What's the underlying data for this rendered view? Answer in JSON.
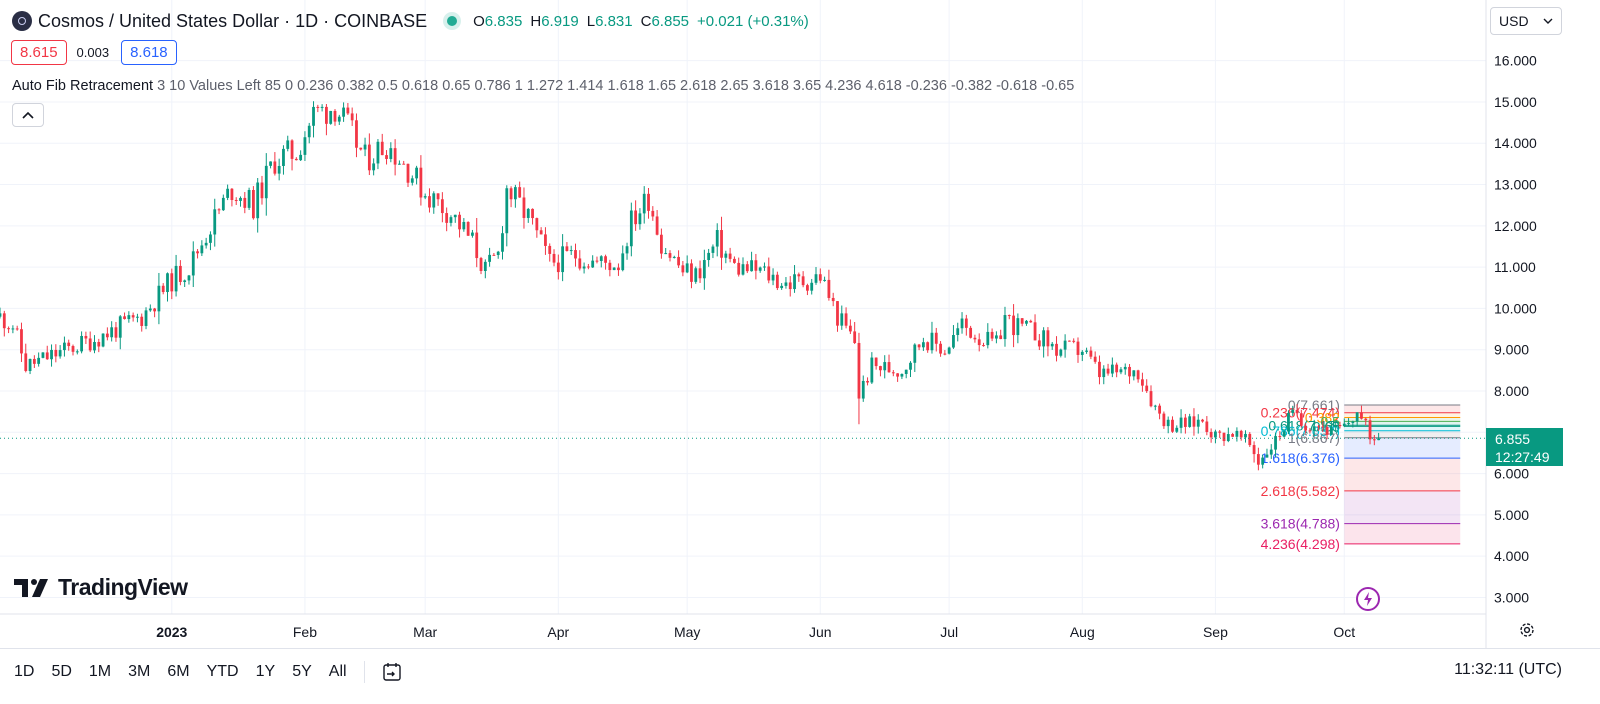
{
  "header": {
    "symbol_title": "Cosmos / United States Dollar · 1D · COINBASE",
    "ohlc": {
      "o_label": "O",
      "o": "6.835",
      "h_label": "H",
      "h": "6.919",
      "l_label": "L",
      "l": "6.831",
      "c_label": "C",
      "c": "6.855",
      "change": "+0.021 (+0.31%)"
    },
    "sell_price": "8.615",
    "spread": "0.003",
    "buy_price": "8.618",
    "currency": "USD",
    "indicator_name": "Auto Fib Retracement",
    "indicator_params": "3 10 Values Left 85 0 0.236 0.382 0.5 0.618 0.65 0.786 1 1.272 1.414 1.618 1.65 2.618 2.65 3.618 3.65 4.236 4.618 -0.236 -0.382 -0.618 -0.65",
    "collapse_icon": "chevron-up-icon"
  },
  "brand": {
    "name": "TradingView"
  },
  "last_price": {
    "value": "6.855",
    "countdown": "12:27:49",
    "color": "#089981"
  },
  "bottom_bar": {
    "ranges": [
      "1D",
      "5D",
      "1M",
      "3M",
      "6M",
      "YTD",
      "1Y",
      "5Y",
      "All"
    ],
    "clock": "11:32:11 (UTC)"
  },
  "colors": {
    "up": "#089981",
    "down": "#f23645"
  },
  "chart_data": {
    "type": "candlestick",
    "y_ticks": [
      "16.000",
      "15.000",
      "14.000",
      "13.000",
      "12.000",
      "11.000",
      "10.000",
      "9.000",
      "8.000",
      "7.000",
      "6.000",
      "5.000",
      "4.000",
      "3.000"
    ],
    "ylim": [
      2.6,
      16.5
    ],
    "x_ticks": [
      {
        "label": "2023",
        "date": "2023-01-01",
        "bold": true
      },
      {
        "label": "Feb",
        "date": "2023-02-01"
      },
      {
        "label": "Mar",
        "date": "2023-03-01"
      },
      {
        "label": "Apr",
        "date": "2023-04-01"
      },
      {
        "label": "May",
        "date": "2023-05-01"
      },
      {
        "label": "Jun",
        "date": "2023-06-01"
      },
      {
        "label": "Jul",
        "date": "2023-07-01"
      },
      {
        "label": "Aug",
        "date": "2023-08-01"
      },
      {
        "label": "Sep",
        "date": "2023-09-01"
      },
      {
        "label": "Oct",
        "date": "2023-10-01"
      }
    ],
    "xlim": [
      "2022-11-22",
      "2023-11-03"
    ],
    "close_anchors": [
      [
        "2022-11-22",
        9.8
      ],
      [
        "2022-11-25",
        9.6
      ],
      [
        "2022-11-28",
        8.6
      ],
      [
        "2022-12-05",
        8.9
      ],
      [
        "2022-12-15",
        9.3
      ],
      [
        "2022-12-25",
        9.8
      ],
      [
        "2023-01-01",
        10.7
      ],
      [
        "2023-01-05",
        11.0
      ],
      [
        "2023-01-10",
        12.0
      ],
      [
        "2023-01-15",
        12.9
      ],
      [
        "2023-01-20",
        12.5
      ],
      [
        "2023-01-25",
        13.6
      ],
      [
        "2023-01-30",
        13.8
      ],
      [
        "2023-02-03",
        14.7
      ],
      [
        "2023-02-08",
        14.9
      ],
      [
        "2023-02-12",
        14.2
      ],
      [
        "2023-02-15",
        13.6
      ],
      [
        "2023-02-20",
        14.0
      ],
      [
        "2023-02-25",
        13.4
      ],
      [
        "2023-03-01",
        12.8
      ],
      [
        "2023-03-07",
        12.3
      ],
      [
        "2023-03-12",
        11.6
      ],
      [
        "2023-03-15",
        10.9
      ],
      [
        "2023-03-18",
        11.3
      ],
      [
        "2023-03-20",
        12.9
      ],
      [
        "2023-03-25",
        12.2
      ],
      [
        "2023-03-30",
        11.1
      ],
      [
        "2023-04-05",
        11.3
      ],
      [
        "2023-04-10",
        11.1
      ],
      [
        "2023-04-15",
        11.1
      ],
      [
        "2023-04-18",
        12.1
      ],
      [
        "2023-04-22",
        12.7
      ],
      [
        "2023-04-25",
        11.6
      ],
      [
        "2023-04-30",
        10.9
      ],
      [
        "2023-05-03",
        10.8
      ],
      [
        "2023-05-08",
        11.6
      ],
      [
        "2023-05-12",
        11.0
      ],
      [
        "2023-05-18",
        10.9
      ],
      [
        "2023-05-24",
        10.6
      ],
      [
        "2023-05-30",
        10.7
      ],
      [
        "2023-06-01",
        10.8
      ],
      [
        "2023-06-05",
        9.8
      ],
      [
        "2023-06-09",
        9.2
      ],
      [
        "2023-06-10",
        7.9
      ],
      [
        "2023-06-13",
        8.6
      ],
      [
        "2023-06-20",
        8.5
      ],
      [
        "2023-06-25",
        9.3
      ],
      [
        "2023-06-30",
        9.0
      ],
      [
        "2023-07-04",
        9.6
      ],
      [
        "2023-07-08",
        9.3
      ],
      [
        "2023-07-12",
        9.1
      ],
      [
        "2023-07-14",
        9.8
      ],
      [
        "2023-07-16",
        9.6
      ],
      [
        "2023-07-21",
        9.4
      ],
      [
        "2023-07-26",
        9.0
      ],
      [
        "2023-08-01",
        9.0
      ],
      [
        "2023-08-05",
        8.4
      ],
      [
        "2023-08-14",
        8.5
      ],
      [
        "2023-08-18",
        7.6
      ],
      [
        "2023-08-21",
        7.2
      ],
      [
        "2023-08-26",
        7.2
      ],
      [
        "2023-08-29",
        7.3
      ],
      [
        "2023-09-01",
        6.9
      ],
      [
        "2023-09-05",
        7.0
      ],
      [
        "2023-09-09",
        6.7
      ],
      [
        "2023-09-11",
        6.3
      ],
      [
        "2023-09-15",
        6.8
      ],
      [
        "2023-09-18",
        7.3
      ],
      [
        "2023-09-20",
        7.5
      ],
      [
        "2023-09-22",
        7.2
      ],
      [
        "2023-09-25",
        7.2
      ],
      [
        "2023-09-28",
        7.0
      ],
      [
        "2023-10-01",
        7.1
      ],
      [
        "2023-10-04",
        7.5
      ],
      [
        "2023-10-06",
        7.1
      ],
      [
        "2023-10-08",
        6.85
      ],
      [
        "2023-10-09",
        6.855
      ]
    ],
    "last_close": 6.855,
    "fib": {
      "start": "2023-10-01",
      "end": "2023-10-28",
      "label_x": "2023-09-30",
      "levels": [
        {
          "label": "0(7.661)",
          "value": 7.661,
          "color": "#787b86"
        },
        {
          "label": "0.236(7.474)",
          "value": 7.474,
          "color": "#f23645"
        },
        {
          "label": "0.382",
          "value": 7.358,
          "color": "#ff9800"
        },
        {
          "label": "0.5",
          "value": 7.264,
          "color": "#4caf50"
        },
        {
          "label": "0.618(7.17)",
          "value": 7.17,
          "color": "#089981"
        },
        {
          "label": "0.65",
          "value": 7.145,
          "color": "#089981"
        },
        {
          "label": "0.786(7.037)",
          "value": 7.037,
          "color": "#00bcd4"
        },
        {
          "label": "1(6.867)",
          "value": 6.867,
          "color": "#787b86"
        },
        {
          "label": "1.618(6.376)",
          "value": 6.376,
          "color": "#2962ff"
        },
        {
          "label": "2.618(5.582)",
          "value": 5.582,
          "color": "#f23645"
        },
        {
          "label": "3.618(4.788)",
          "value": 4.788,
          "color": "#9c27b0"
        },
        {
          "label": "4.236(4.298)",
          "value": 4.298,
          "color": "#e91e63"
        }
      ]
    }
  }
}
